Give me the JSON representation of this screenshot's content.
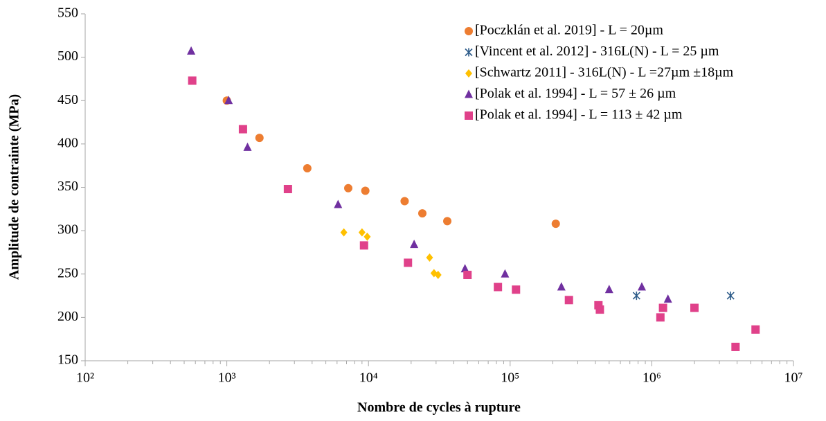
{
  "chart_data": {
    "type": "scatter",
    "xlabel": "Nombre de cycles à rupture",
    "ylabel": "Amplitude de contrainte (MPa)",
    "xscale": "log",
    "minor_ticks": true,
    "legend": "top-right",
    "xlim": [
      100,
      10000000
    ],
    "xticks": [
      {
        "value": 100,
        "label": "10²"
      },
      {
        "value": 1000,
        "label": "10³"
      },
      {
        "value": 10000,
        "label": "10⁴"
      },
      {
        "value": 100000,
        "label": "10⁵"
      },
      {
        "value": 1000000,
        "label": "10⁶"
      },
      {
        "value": 10000000,
        "label": "10⁷"
      }
    ],
    "ylim": [
      150,
      550
    ],
    "yticks": [
      150,
      200,
      250,
      300,
      350,
      400,
      450,
      500,
      550
    ],
    "series": [
      {
        "name": "[Poczklán et al. 2019] - L = 20µm",
        "color": "#ed7d31",
        "marker": "circle",
        "x": [
          1000,
          1700,
          3700,
          7200,
          9500,
          18000,
          24000,
          36000,
          210000
        ],
        "values": [
          450,
          407,
          372,
          349,
          346,
          334,
          320,
          311,
          308
        ]
      },
      {
        "name": "[Vincent et al. 2012] - 316L(N) - L = 25 µm",
        "color": "#2e5c8a",
        "marker": "asterisk",
        "x": [
          780000,
          3600000
        ],
        "values": [
          225,
          225
        ]
      },
      {
        "name": "[Schwartz 2011] - 316L(N) - L =27µm ±18µm",
        "color": "#ffc000",
        "marker": "diamond",
        "x": [
          6700,
          9000,
          9800,
          27000,
          29000,
          31000
        ],
        "values": [
          298,
          298,
          293,
          269,
          251,
          249
        ]
      },
      {
        "name": "[Polak et al. 1994] - L = 57 ± 26 µm",
        "color": "#7030a0",
        "marker": "triangle",
        "x": [
          560,
          1030,
          1400,
          6100,
          21000,
          48000,
          92000,
          230000,
          500000,
          850000,
          1300000
        ],
        "values": [
          507,
          450,
          396,
          330,
          284,
          256,
          250,
          235,
          232,
          235,
          221
        ]
      },
      {
        "name": "[Polak et al. 1994] - L = 113 ± 42 µm",
        "color": "#e0418a",
        "marker": "square",
        "x": [
          570,
          1300,
          2700,
          9300,
          19000,
          50000,
          82000,
          110000,
          260000,
          420000,
          430000,
          1150000,
          1200000,
          2000000,
          3900000,
          5400000
        ],
        "values": [
          473,
          417,
          348,
          283,
          263,
          249,
          235,
          232,
          220,
          214,
          209,
          200,
          211,
          211,
          166,
          186
        ]
      }
    ]
  }
}
